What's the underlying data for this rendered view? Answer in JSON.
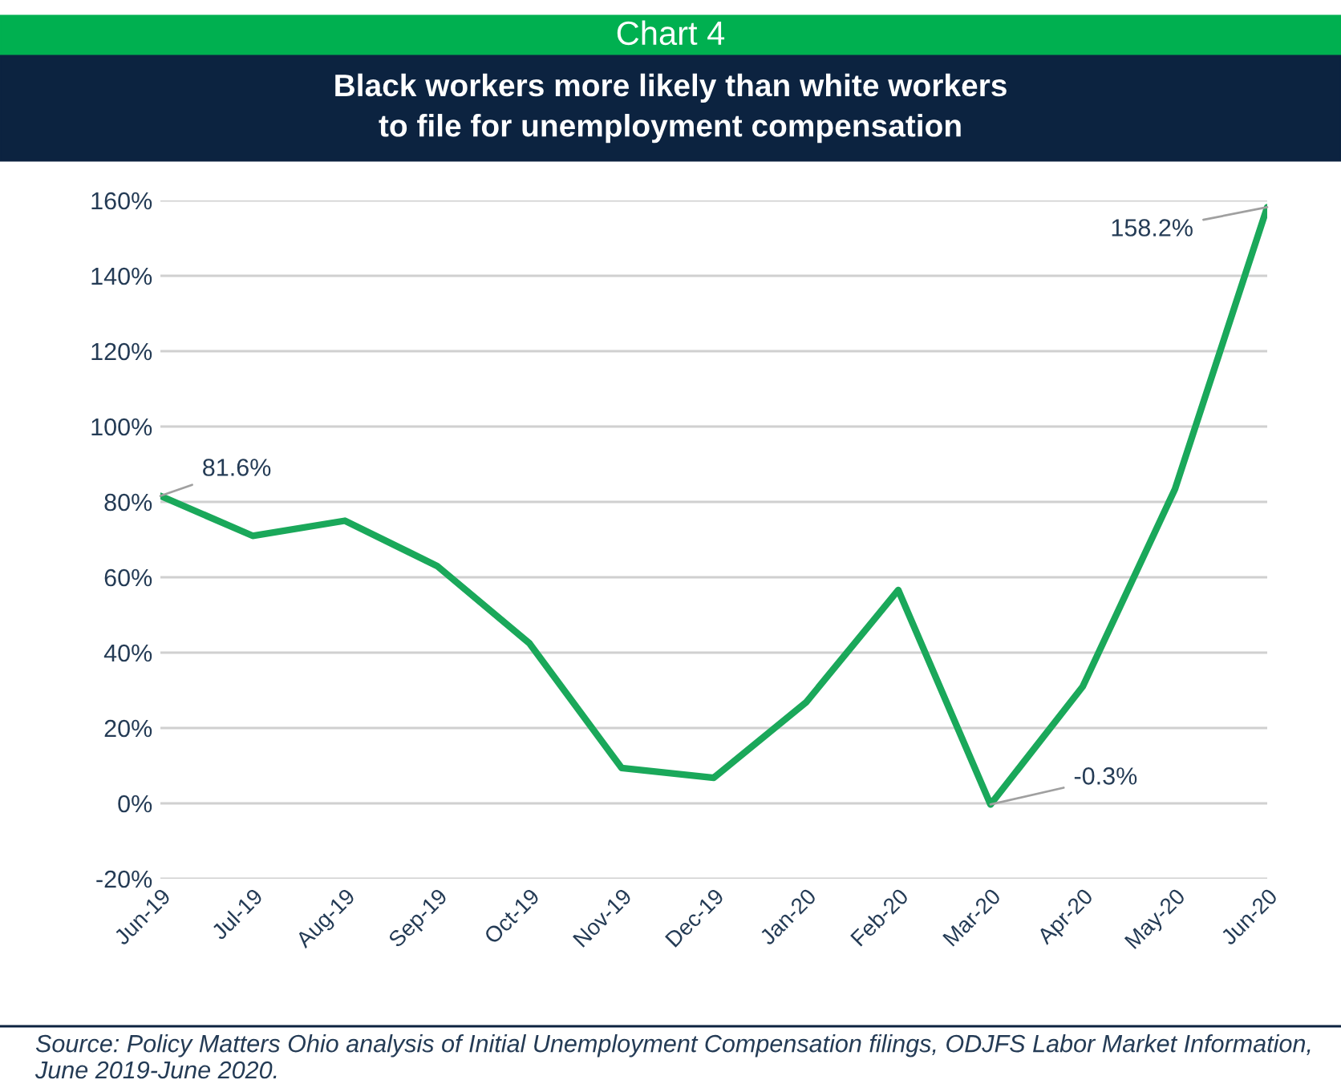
{
  "chart_data": {
    "type": "line",
    "title": "Chart 4",
    "subtitle": "Black workers more likely than white workers\nto file for unemployment compensation",
    "categories": [
      "Jun-19",
      "Jul-19",
      "Aug-19",
      "Sep-19",
      "Oct-19",
      "Nov-19",
      "Dec-19",
      "Jan-20",
      "Feb-20",
      "Mar-20",
      "Apr-20",
      "May-20",
      "Jun-20"
    ],
    "series": [
      {
        "color": "#1aa85a",
        "values": [
          81.6,
          71,
          75,
          63,
          42.5,
          9.4,
          6.8,
          26.8,
          56.6,
          -0.3,
          31,
          83.4,
          158.2
        ],
        "value_labels": [
          "81.6%",
          null,
          null,
          null,
          null,
          null,
          null,
          null,
          null,
          "-0.3%",
          null,
          null,
          "158.2%"
        ]
      }
    ],
    "ylim": [
      -20,
      160
    ],
    "yticks": [
      {
        "value": -20,
        "label": "-20%"
      },
      {
        "value": 0,
        "label": "0%"
      },
      {
        "value": 20,
        "label": "20%"
      },
      {
        "value": 40,
        "label": "40%"
      },
      {
        "value": 60,
        "label": "60%"
      },
      {
        "value": 80,
        "label": "80%"
      },
      {
        "value": 100,
        "label": "100%"
      },
      {
        "value": 120,
        "label": "120%"
      },
      {
        "value": 140,
        "label": "140%"
      },
      {
        "value": 160,
        "label": "160%"
      }
    ],
    "grid": "y",
    "legend": false,
    "annotations": [
      "Source: Policy Matters Ohio analysis of Initial Unemployment Compensation filings, ODJFS Labor Market Information, June 2019-June 2020."
    ]
  }
}
